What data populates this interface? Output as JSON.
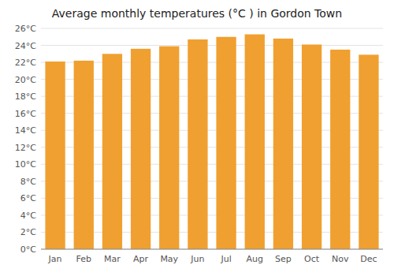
{
  "chart_data": {
    "type": "bar",
    "title": "Average monthly temperatures (°C ) in Gordon Town",
    "categories": [
      "Jan",
      "Feb",
      "Mar",
      "Apr",
      "May",
      "Jun",
      "Jul",
      "Aug",
      "Sep",
      "Oct",
      "Nov",
      "Dec"
    ],
    "values": [
      22.1,
      22.2,
      23.0,
      23.6,
      23.9,
      24.7,
      25.0,
      25.3,
      24.8,
      24.1,
      23.5,
      22.9
    ],
    "color": "#f0a030",
    "ylim": [
      0,
      26
    ],
    "yticks": [
      {
        "value": 0,
        "label": "0°C"
      },
      {
        "value": 2,
        "label": "2°C"
      },
      {
        "value": 4,
        "label": "4°C"
      },
      {
        "value": 6,
        "label": "6°C"
      },
      {
        "value": 8,
        "label": "8°C"
      },
      {
        "value": 10,
        "label": "10°C"
      },
      {
        "value": 12,
        "label": "12°C"
      },
      {
        "value": 14,
        "label": "14°C"
      },
      {
        "value": 16,
        "label": "16°C"
      },
      {
        "value": 18,
        "label": "18°C"
      },
      {
        "value": 20,
        "label": "20°C"
      },
      {
        "value": 22,
        "label": "22°C"
      },
      {
        "value": 24,
        "label": "24°C"
      },
      {
        "value": 26,
        "label": "26°C"
      }
    ],
    "grid": true
  }
}
